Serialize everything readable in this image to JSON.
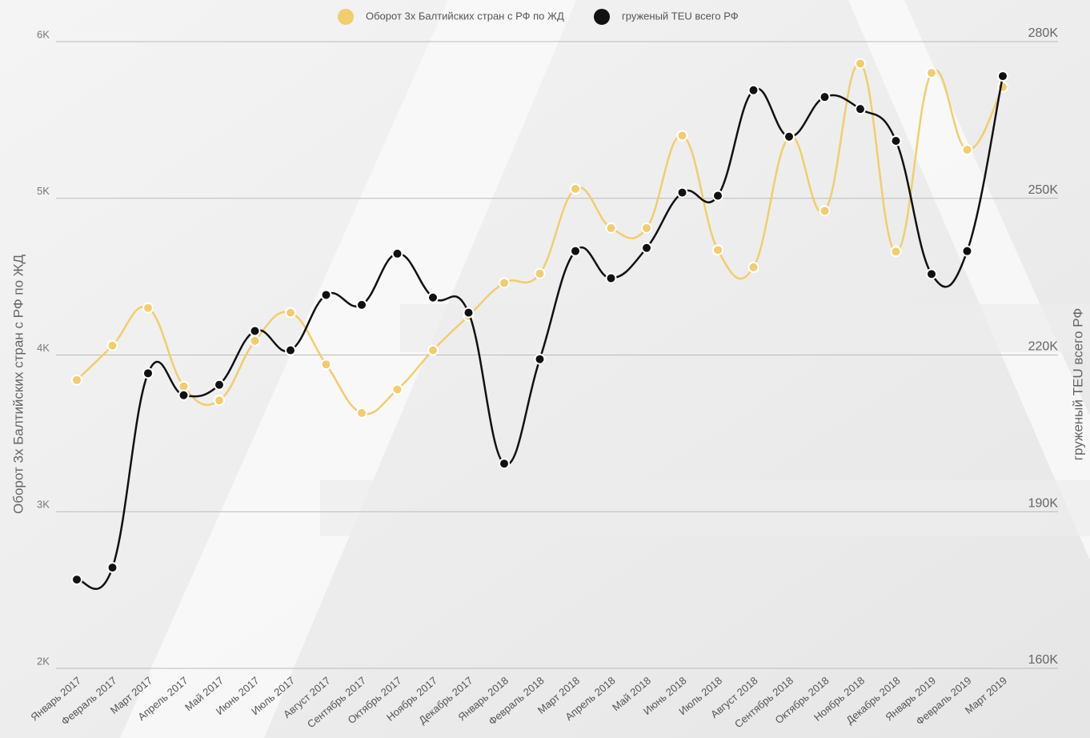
{
  "chart_data": {
    "type": "line",
    "categories": [
      "Январь 2017",
      "Февраль 2017",
      "Март 2017",
      "Апрель 2017",
      "Май 2017",
      "Июнь 2017",
      "Июль 2017",
      "Август 2017",
      "Сентябрь 2017",
      "Октябрь 2017",
      "Ноябрь 2017",
      "Декабрь 2017",
      "Январь 2018",
      "Февраль 2018",
      "Март 2018",
      "Апрель 2018",
      "Май 2018",
      "Июнь 2018",
      "Июль 2018",
      "Август 2018",
      "Сентябрь 2018",
      "Октябрь 2018",
      "Ноябрь 2018",
      "Декабрь 2018",
      "Январь 2019",
      "Февраль 2019",
      "Март 2019"
    ],
    "series": [
      {
        "name": "Оборот 3х Балтийских стран с РФ по ЖД",
        "color": "#f2cd6e",
        "axis": "y",
        "values": [
          3840,
          4060,
          4300,
          3800,
          3710,
          4090,
          4270,
          3940,
          3630,
          3780,
          4030,
          4250,
          4460,
          4520,
          5060,
          4810,
          4810,
          5400,
          4670,
          4560,
          5390,
          4920,
          5860,
          4660,
          5800,
          5310,
          5710
        ]
      },
      {
        "name": "груженый TEU всего РФ",
        "color": "#111111",
        "axis": "y2",
        "values": [
          177000,
          179300,
          216500,
          212300,
          214300,
          224600,
          220900,
          231500,
          229600,
          239400,
          231000,
          228100,
          199200,
          219200,
          239900,
          234700,
          240500,
          251100,
          250500,
          270700,
          261800,
          269400,
          267100,
          261000,
          235500,
          239900,
          273400
        ]
      }
    ],
    "ylabel": "Оборот 3х Балтийских стран с РФ по ЖД",
    "y2label": "груженый TEU всего РФ",
    "ylim": [
      2000,
      6000
    ],
    "yticks": [
      {
        "value": 2000,
        "label": "2K"
      },
      {
        "value": 3000,
        "label": "3K"
      },
      {
        "value": 4000,
        "label": "4K"
      },
      {
        "value": 5000,
        "label": "5K"
      },
      {
        "value": 6000,
        "label": "6K"
      }
    ],
    "y2lim": [
      160000,
      280000
    ],
    "y2ticks": [
      {
        "value": 160000,
        "label": "160K"
      },
      {
        "value": 190000,
        "label": "190K"
      },
      {
        "value": 220000,
        "label": "220K"
      },
      {
        "value": 250000,
        "label": "250K"
      },
      {
        "value": 280000,
        "label": "280K"
      }
    ],
    "grid": true,
    "legend": "top"
  }
}
